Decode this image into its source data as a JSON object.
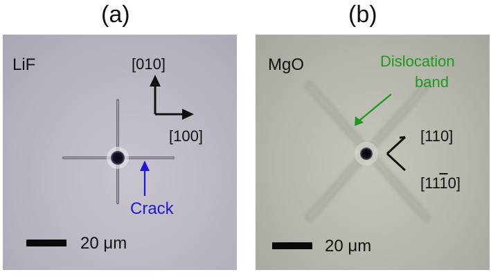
{
  "panels": [
    {
      "label": "(a)",
      "material": "LiF",
      "directions": [
        "[010]",
        "[100]"
      ],
      "annotation": "Crack",
      "scale_bar": "20 μm",
      "colors": {
        "annotation": "#1a1ad6",
        "text": "#111111"
      }
    },
    {
      "label": "(b)",
      "material": "MgO",
      "annotation_lines": [
        "Dislocation",
        "band"
      ],
      "directions": [
        "[110]",
        "[11",
        "0]",
        "1"
      ],
      "scale_bar": "20 μm",
      "colors": {
        "annotation": "#1c9a1c",
        "text": "#111111"
      }
    }
  ]
}
